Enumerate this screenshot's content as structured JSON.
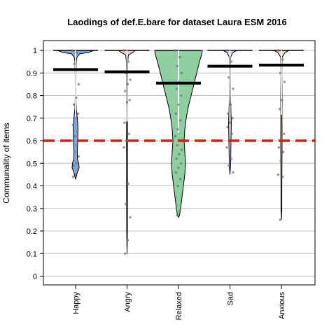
{
  "chart_data": {
    "type": "violin",
    "title": "Laodings of def.E.bare for dataset Laura ESM 2016",
    "xlabel": "",
    "ylabel": "Communality of items",
    "ylim": [
      0,
      1
    ],
    "yticks": [
      0,
      0.1,
      0.2,
      0.3,
      0.4,
      0.5,
      0.6,
      0.7,
      0.8,
      0.9,
      1
    ],
    "grid": true,
    "reference_line": {
      "y": 0.6,
      "color": "#e8150f"
    },
    "categories": [
      "Happy",
      "Angry",
      "Relaxed",
      "Sad",
      "Anxious"
    ],
    "series": [
      {
        "mean": 0.915,
        "color": "#7fa7d8",
        "min": 0.43,
        "density": [
          [
            1.0,
            26
          ],
          [
            0.99,
            18
          ],
          [
            0.985,
            6
          ],
          [
            0.97,
            2
          ],
          [
            0.95,
            1
          ],
          [
            0.9,
            0.6
          ],
          [
            0.8,
            0.4
          ],
          [
            0.74,
            1
          ],
          [
            0.7,
            2.5
          ],
          [
            0.65,
            3.5
          ],
          [
            0.6,
            3
          ],
          [
            0.55,
            2.5
          ],
          [
            0.52,
            2.5
          ],
          [
            0.5,
            4.5
          ],
          [
            0.48,
            5
          ],
          [
            0.46,
            2.5
          ],
          [
            0.44,
            1
          ],
          [
            0.43,
            0
          ]
        ],
        "points": [
          1.0,
          0.99,
          0.94,
          0.85,
          0.79,
          0.76,
          0.72,
          0.7,
          0.67,
          0.64,
          0.62,
          0.6,
          0.58,
          0.55,
          0.53,
          0.5,
          0.49,
          0.47,
          0.45,
          0.44
        ]
      },
      {
        "mean": 0.905,
        "color": "#ffc7c7",
        "min": 0.1,
        "density": [
          [
            1.0,
            12
          ],
          [
            0.99,
            8
          ],
          [
            0.98,
            2
          ],
          [
            0.95,
            1
          ],
          [
            0.85,
            0.8
          ],
          [
            0.7,
            0.6
          ],
          [
            0.6,
            1
          ],
          [
            0.5,
            0.7
          ],
          [
            0.4,
            0.8
          ],
          [
            0.3,
            0.6
          ],
          [
            0.2,
            0.5
          ],
          [
            0.1,
            0
          ]
        ],
        "points": [
          1.0,
          0.95,
          0.9,
          0.87,
          0.85,
          0.82,
          0.78,
          0.77,
          0.68,
          0.63,
          0.6,
          0.57,
          0.41,
          0.32,
          0.26,
          0.16,
          0.1
        ]
      },
      {
        "mean": 0.855,
        "color": "#8fcf9f",
        "min": 0.26,
        "density": [
          [
            1.0,
            34
          ],
          [
            0.98,
            33
          ],
          [
            0.95,
            30
          ],
          [
            0.9,
            26
          ],
          [
            0.85,
            22
          ],
          [
            0.8,
            18
          ],
          [
            0.75,
            14
          ],
          [
            0.7,
            11
          ],
          [
            0.65,
            9
          ],
          [
            0.6,
            8
          ],
          [
            0.55,
            9
          ],
          [
            0.5,
            10
          ],
          [
            0.45,
            9
          ],
          [
            0.4,
            7
          ],
          [
            0.35,
            5
          ],
          [
            0.3,
            3
          ],
          [
            0.27,
            1.5
          ],
          [
            0.26,
            0
          ]
        ],
        "points": [
          1.0,
          0.97,
          0.93,
          0.9,
          0.86,
          0.83,
          0.8,
          0.76,
          0.72,
          0.69,
          0.65,
          0.62,
          0.6,
          0.58,
          0.56,
          0.54,
          0.52,
          0.5,
          0.48,
          0.46,
          0.43,
          0.4,
          0.35,
          0.29,
          0.27
        ]
      },
      {
        "mean": 0.93,
        "color": "#d8c8f0",
        "min": 0.45,
        "density": [
          [
            1.0,
            10
          ],
          [
            0.99,
            4
          ],
          [
            0.97,
            1
          ],
          [
            0.9,
            0.6
          ],
          [
            0.8,
            0.8
          ],
          [
            0.72,
            1.5
          ],
          [
            0.68,
            2
          ],
          [
            0.6,
            1.5
          ],
          [
            0.5,
            1
          ],
          [
            0.45,
            0
          ]
        ],
        "points": [
          1.0,
          0.95,
          0.88,
          0.83,
          0.76,
          0.72,
          0.7,
          0.68,
          0.66,
          0.63,
          0.6,
          0.57,
          0.52,
          0.49,
          0.46
        ]
      },
      {
        "mean": 0.935,
        "color": "#f5d7c0",
        "min": 0.25,
        "density": [
          [
            1.0,
            11
          ],
          [
            0.99,
            5
          ],
          [
            0.97,
            1
          ],
          [
            0.9,
            0.6
          ],
          [
            0.78,
            1
          ],
          [
            0.7,
            0.8
          ],
          [
            0.6,
            1
          ],
          [
            0.5,
            0.8
          ],
          [
            0.4,
            0.6
          ],
          [
            0.3,
            0.6
          ],
          [
            0.25,
            0
          ]
        ],
        "points": [
          1.0,
          0.96,
          0.9,
          0.86,
          0.78,
          0.74,
          0.63,
          0.6,
          0.57,
          0.55,
          0.51,
          0.45,
          0.44,
          0.25
        ]
      }
    ]
  }
}
